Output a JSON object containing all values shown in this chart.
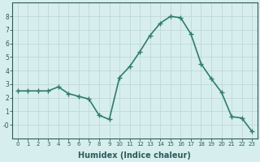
{
  "x": [
    0,
    1,
    2,
    3,
    4,
    5,
    6,
    7,
    8,
    9,
    10,
    11,
    12,
    13,
    14,
    15,
    16,
    17,
    18,
    19,
    20,
    21,
    22,
    23
  ],
  "y": [
    2.5,
    2.5,
    2.5,
    2.5,
    2.8,
    2.3,
    2.1,
    1.9,
    0.7,
    0.4,
    3.5,
    4.3,
    5.4,
    6.6,
    7.5,
    8.0,
    7.9,
    6.7,
    4.5,
    3.4,
    2.4,
    0.6,
    0.5,
    -0.5
  ],
  "line_color": "#2e7d6e",
  "marker": "+",
  "markersize": 4,
  "markeredgewidth": 1.0,
  "linewidth": 1.2,
  "xlabel": "Humidex (Indice chaleur)",
  "xlabel_fontsize": 7,
  "bg_color": "#d6eeee",
  "grid_color": "#c0d8d8",
  "tick_color": "#2e5a5a",
  "spine_color": "#2e5a5a",
  "ylim": [
    -1.0,
    9.0
  ],
  "xlim": [
    -0.5,
    23.5
  ],
  "yticks": [
    0,
    1,
    2,
    3,
    4,
    5,
    6,
    7,
    8
  ],
  "ytick_labels": [
    "-0",
    "1",
    "2",
    "3",
    "4",
    "5",
    "6",
    "7",
    "8"
  ],
  "xticks": [
    0,
    1,
    2,
    3,
    4,
    5,
    6,
    7,
    8,
    9,
    10,
    11,
    12,
    13,
    14,
    15,
    16,
    17,
    18,
    19,
    20,
    21,
    22,
    23
  ],
  "tick_fontsize": 5.0,
  "ytick_fontsize": 5.5
}
